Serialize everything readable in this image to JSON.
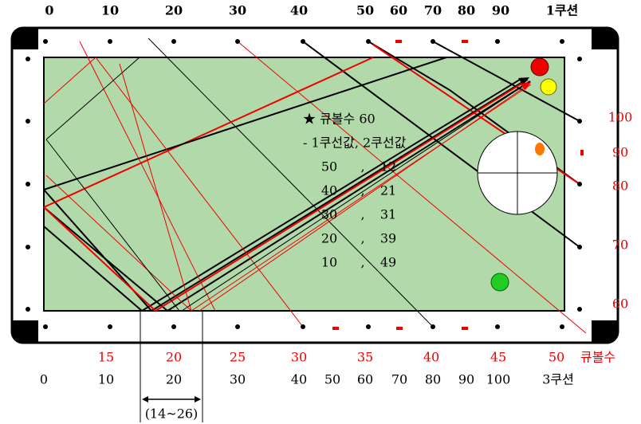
{
  "top_scale": {
    "labels": [
      "0",
      "10",
      "20",
      "30",
      "40",
      "50",
      "60",
      "70",
      "80",
      "90",
      "1쿠션"
    ]
  },
  "right_scale": {
    "labels": [
      "100",
      "90",
      "80",
      "70",
      "60"
    ]
  },
  "bottom_red_scale": {
    "labels": [
      "15",
      "20",
      "25",
      "30",
      "35",
      "40",
      "45",
      "50",
      "큐볼수"
    ]
  },
  "bottom_black_scale": {
    "labels": [
      "0",
      "10",
      "20",
      "30",
      "40",
      "50",
      "60",
      "70",
      "80",
      "90",
      "100",
      "3쿠션"
    ]
  },
  "range_label": "(14~26)",
  "note": {
    "title": "★ 큐볼수  60",
    "subtitle": "- 1쿠선값, 2쿠선값",
    "rows": [
      [
        "50",
        ",",
        "12"
      ],
      [
        "40",
        ",",
        "21"
      ],
      [
        "30",
        ",",
        "31"
      ],
      [
        "20",
        ",",
        "39"
      ],
      [
        "10",
        ",",
        "49"
      ]
    ]
  }
}
